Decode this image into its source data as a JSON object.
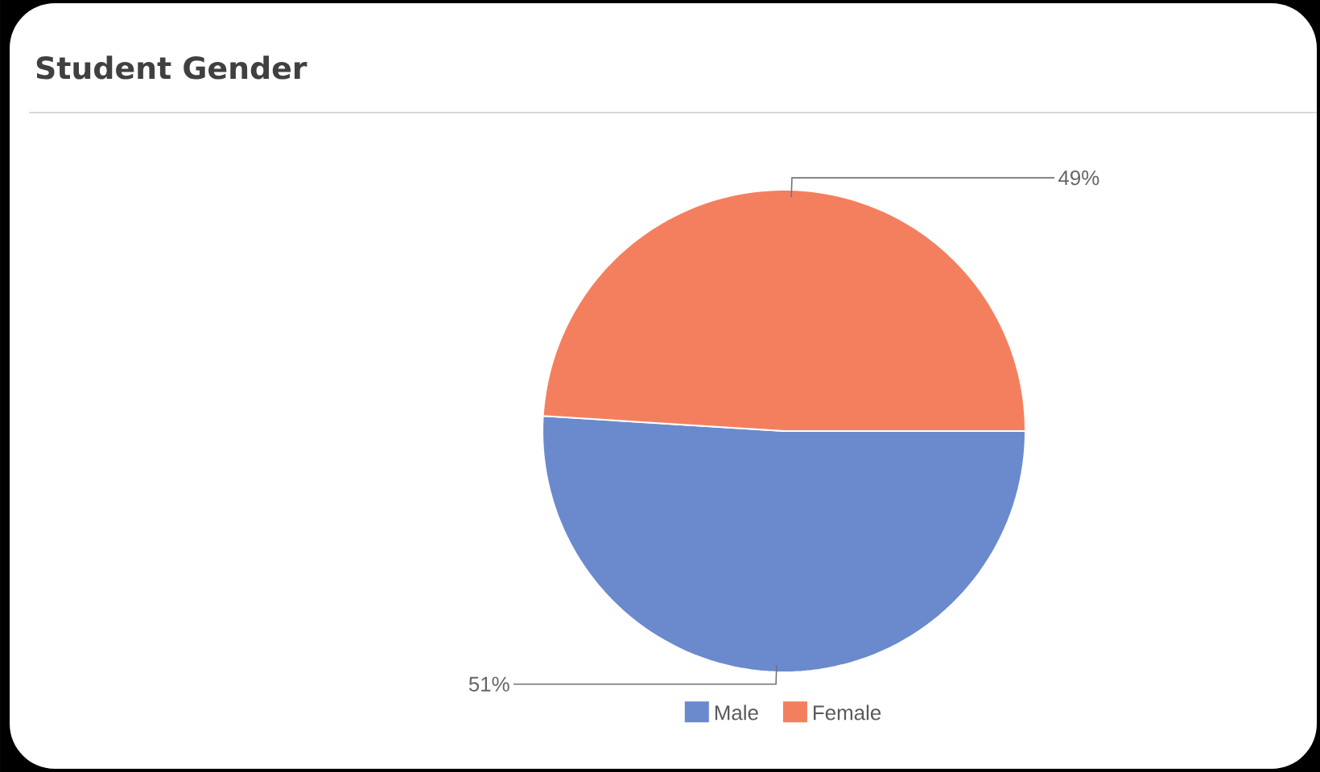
{
  "chart_data": {
    "type": "pie",
    "title": "Student Gender",
    "categories": [
      "Male",
      "Female"
    ],
    "values": [
      51,
      49
    ],
    "colors": [
      "#6a8acd",
      "#f47f5f"
    ],
    "value_labels": [
      "51%",
      "49%"
    ],
    "legend": "bottom"
  }
}
